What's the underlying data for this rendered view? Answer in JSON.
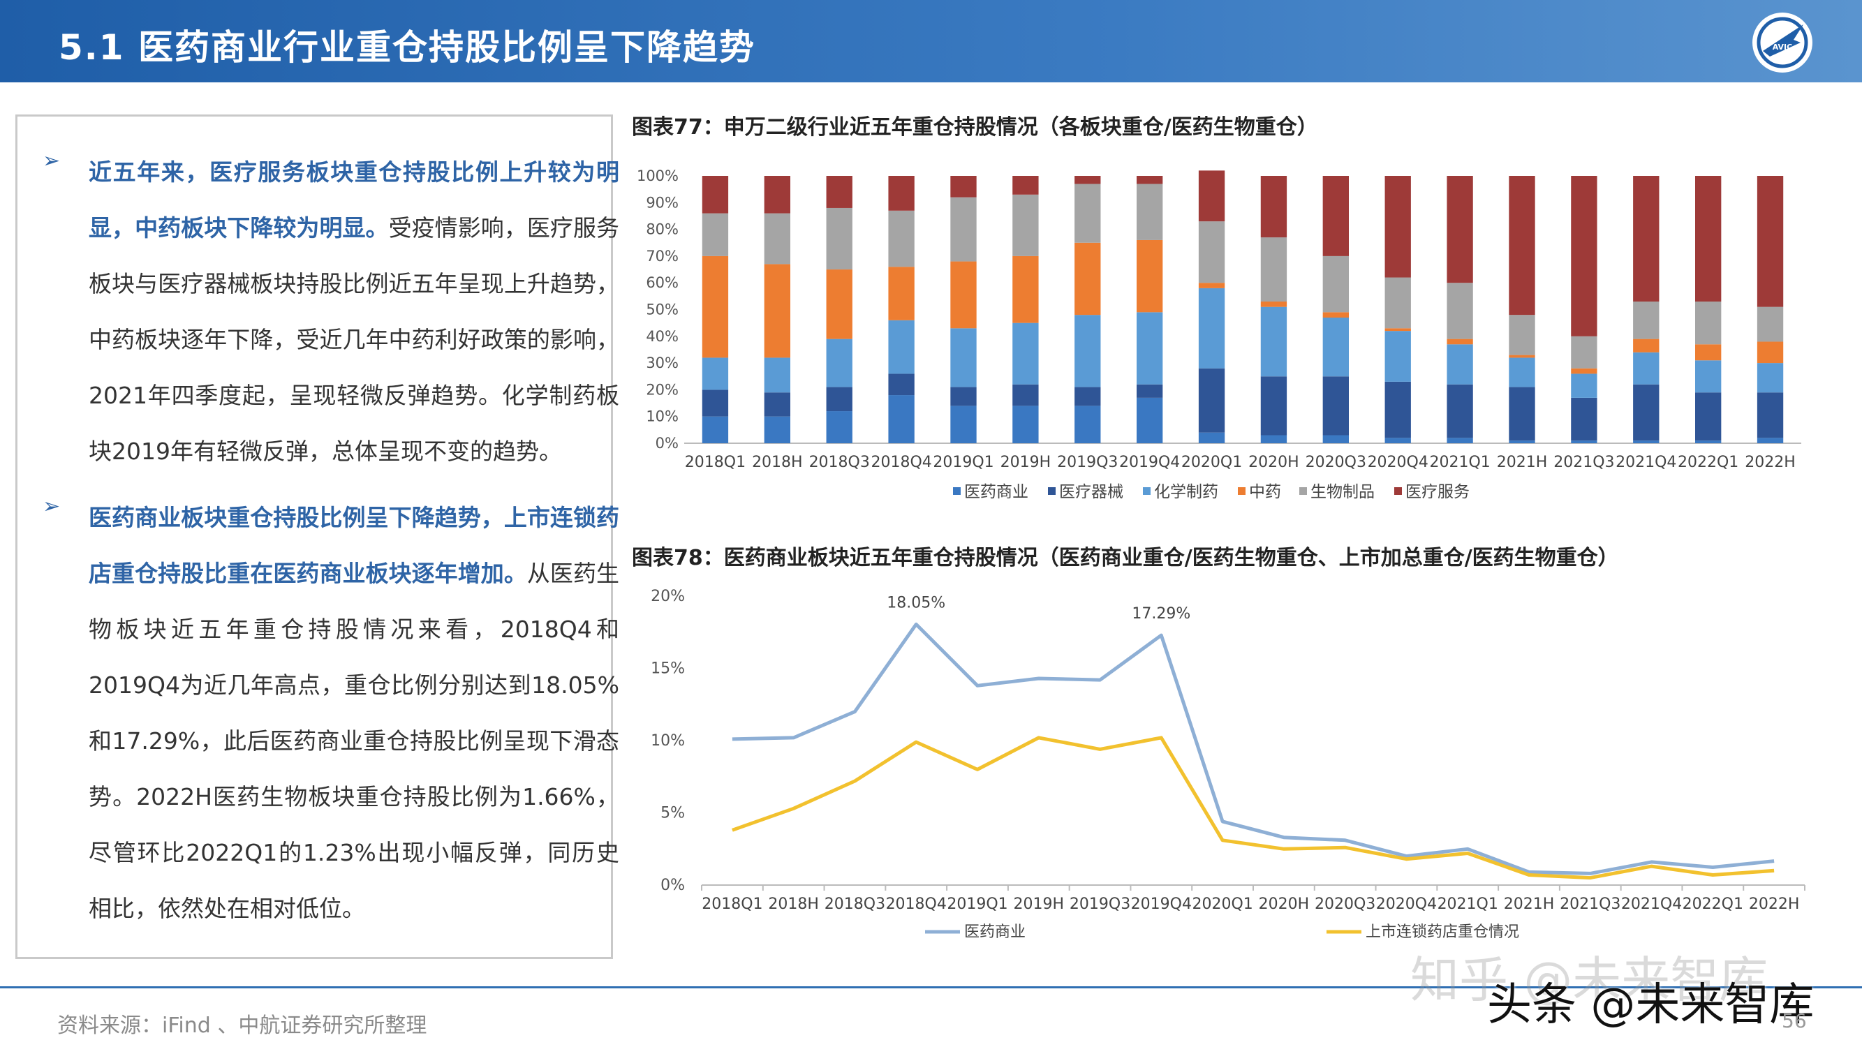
{
  "header": {
    "title": "5.1 医药商业行业重仓持股比例呈下降趋势",
    "logo_text": "AVIC"
  },
  "left_panel": {
    "paragraphs": [
      {
        "highlight": "近五年来，医疗服务板块重仓持股比例上升较为明显，中药板块下降较为明显。",
        "body": "受疫情影响，医疗服务板块与医疗器械板块持股比例近五年呈现上升趋势，中药板块逐年下降，受近几年中药利好政策的影响，2021年四季度起，呈现轻微反弹趋势。化学制药板块2019年有轻微反弹，总体呈现不变的趋势。"
      },
      {
        "highlight": "医药商业板块重仓持股比例呈下降趋势，上市连锁药店重仓持股比重在医药商业板块逐年增加。",
        "body": "从医药生物板块近五年重仓持股情况来看，2018Q4和2019Q4为近几年高点，重仓比例分别达到18.05%和17.29%，此后医药商业重仓持股比例呈现下滑态势。2022H医药生物板块重仓持股比例为1.66%，尽管环比2022Q1的1.23%出现小幅反弹，同历史相比，依然处在相对低位。"
      }
    ]
  },
  "chart1_title": "图表77：申万二级行业近五年重仓持股情况（各板块重仓/医药生物重仓）",
  "chart2_title": "图表78：医药商业板块近五年重仓持股情况（医药商业重仓/医药生物重仓、上市加总重仓/医药生物重仓）",
  "footer": {
    "source": "资料来源：iFind 、中航证券研究所整理",
    "page": "56",
    "watermark1": "知乎 @未来智库",
    "watermark2": "头条 @未来智库"
  },
  "chart_data": [
    {
      "type": "bar",
      "stacked": true,
      "categories": [
        "2018Q1",
        "2018H",
        "2018Q3",
        "2018Q4",
        "2019Q1",
        "2019H",
        "2019Q3",
        "2019Q4",
        "2020Q1",
        "2020H",
        "2020Q3",
        "2020Q4",
        "2021Q1",
        "2021H",
        "2021Q3",
        "2021Q4",
        "2022Q1",
        "2022H"
      ],
      "yticks": [
        "0%",
        "10%",
        "20%",
        "30%",
        "40%",
        "50%",
        "60%",
        "70%",
        "80%",
        "90%",
        "100%"
      ],
      "ylim": [
        0,
        100
      ],
      "legend_position": "bottom",
      "series": [
        {
          "name": "医药商业",
          "color": "#3a78c2",
          "values": [
            10,
            10,
            12,
            18,
            14,
            14,
            14,
            17,
            4,
            3,
            3,
            2,
            2,
            1,
            1,
            1,
            1,
            2
          ]
        },
        {
          "name": "医疗器械",
          "color": "#2f5596",
          "values": [
            10,
            9,
            9,
            8,
            7,
            8,
            7,
            5,
            24,
            22,
            22,
            21,
            20,
            20,
            16,
            21,
            18,
            17
          ]
        },
        {
          "name": "化学制药",
          "color": "#5a9bd5",
          "values": [
            12,
            13,
            18,
            20,
            22,
            23,
            27,
            27,
            30,
            26,
            22,
            19,
            15,
            11,
            9,
            12,
            12,
            11
          ]
        },
        {
          "name": "中药",
          "color": "#ed7d31",
          "values": [
            38,
            35,
            26,
            20,
            25,
            25,
            27,
            27,
            2,
            2,
            2,
            1,
            2,
            1,
            2,
            5,
            6,
            8
          ]
        },
        {
          "name": "生物制品",
          "color": "#a5a5a5",
          "values": [
            16,
            19,
            23,
            21,
            24,
            23,
            22,
            21,
            23,
            24,
            21,
            19,
            21,
            15,
            12,
            14,
            16,
            13
          ]
        },
        {
          "name": "医疗服务",
          "color": "#9e3a38",
          "values": [
            14,
            14,
            12,
            13,
            8,
            7,
            3,
            3,
            19,
            23,
            30,
            38,
            40,
            52,
            60,
            47,
            47,
            49
          ]
        }
      ]
    },
    {
      "type": "line",
      "categories": [
        "2018Q1",
        "2018H",
        "2018Q3",
        "2018Q4",
        "2019Q1",
        "2019H",
        "2019Q3",
        "2019Q4",
        "2020Q1",
        "2020H",
        "2020Q3",
        "2020Q4",
        "2021Q1",
        "2021H",
        "2021Q3",
        "2021Q4",
        "2022Q1",
        "2022H"
      ],
      "yticks": [
        "0%",
        "5%",
        "10%",
        "15%",
        "20%"
      ],
      "ylim": [
        0,
        20
      ],
      "legend_position": "bottom",
      "series": [
        {
          "name": "医药商业",
          "color": "#8eafd5",
          "values": [
            10.1,
            10.2,
            12,
            18.05,
            13.8,
            14.3,
            14.2,
            17.29,
            4.4,
            3.3,
            3.1,
            2.0,
            2.5,
            0.9,
            0.8,
            1.6,
            1.23,
            1.66
          ]
        },
        {
          "name": "上市连锁药店重仓情况",
          "color": "#f2c12e",
          "values": [
            3.8,
            5.3,
            7.2,
            9.9,
            8.0,
            10.2,
            9.4,
            10.2,
            3.1,
            2.5,
            2.6,
            1.8,
            2.2,
            0.7,
            0.5,
            1.3,
            0.7,
            1.0
          ]
        }
      ],
      "annotations": [
        {
          "category": "2018Q4",
          "text": "18.05%"
        },
        {
          "category": "2019Q4",
          "text": "17.29%"
        }
      ]
    }
  ]
}
